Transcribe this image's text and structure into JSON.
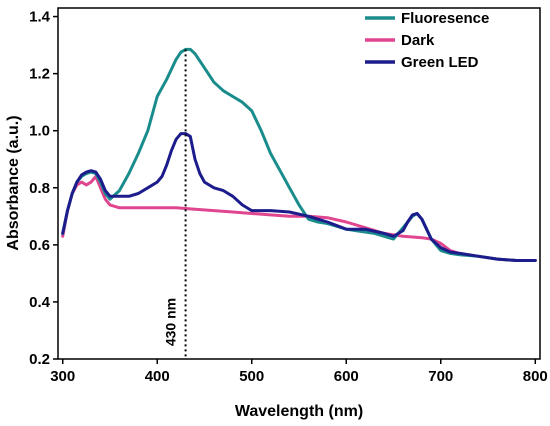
{
  "chart_data": {
    "type": "line",
    "title": "",
    "xlabel": "Wavelength (nm)",
    "ylabel": "Absorbance (a.u.)",
    "xlim": [
      295,
      805
    ],
    "ylim": [
      0.2,
      1.43
    ],
    "xticks": [
      300,
      400,
      500,
      600,
      700,
      800
    ],
    "yticks": [
      0.2,
      0.4,
      0.6,
      0.8,
      1.0,
      1.2,
      1.4
    ],
    "ytick_labels": [
      "0.2",
      "0.4",
      "0.6",
      "0.8",
      "1.0",
      "1.2",
      "1.4"
    ],
    "grid": false,
    "legend_position": "top-right",
    "series": [
      {
        "name": "Fluoresence",
        "color": "#1a8c8c",
        "x": [
          300,
          305,
          310,
          315,
          320,
          325,
          330,
          335,
          340,
          345,
          350,
          360,
          370,
          380,
          390,
          395,
          400,
          410,
          420,
          425,
          430,
          435,
          440,
          450,
          460,
          470,
          480,
          490,
          500,
          510,
          520,
          530,
          540,
          550,
          560,
          570,
          580,
          590,
          600,
          610,
          620,
          630,
          640,
          650,
          660,
          665,
          670,
          675,
          680,
          690,
          700,
          710,
          720,
          740,
          760,
          780,
          800
        ],
        "y": [
          0.64,
          0.72,
          0.78,
          0.82,
          0.84,
          0.85,
          0.855,
          0.85,
          0.82,
          0.78,
          0.76,
          0.79,
          0.85,
          0.92,
          1.0,
          1.06,
          1.12,
          1.18,
          1.25,
          1.275,
          1.285,
          1.285,
          1.27,
          1.22,
          1.17,
          1.14,
          1.12,
          1.1,
          1.07,
          1.0,
          0.92,
          0.86,
          0.8,
          0.74,
          0.69,
          0.68,
          0.675,
          0.665,
          0.655,
          0.65,
          0.645,
          0.64,
          0.63,
          0.62,
          0.66,
          0.68,
          0.7,
          0.71,
          0.69,
          0.62,
          0.58,
          0.57,
          0.565,
          0.56,
          0.55,
          0.545,
          0.545
        ]
      },
      {
        "name": "Dark",
        "color": "#e0458f",
        "x": [
          300,
          305,
          310,
          315,
          320,
          325,
          330,
          335,
          340,
          345,
          350,
          360,
          370,
          380,
          400,
          420,
          440,
          460,
          480,
          500,
          520,
          540,
          560,
          580,
          600,
          620,
          640,
          660,
          680,
          690,
          700,
          710,
          720,
          740,
          760,
          780,
          800
        ],
        "y": [
          0.63,
          0.72,
          0.78,
          0.81,
          0.82,
          0.81,
          0.82,
          0.84,
          0.8,
          0.76,
          0.74,
          0.73,
          0.73,
          0.73,
          0.73,
          0.73,
          0.725,
          0.72,
          0.715,
          0.71,
          0.705,
          0.7,
          0.7,
          0.695,
          0.68,
          0.66,
          0.64,
          0.63,
          0.625,
          0.62,
          0.605,
          0.58,
          0.57,
          0.56,
          0.55,
          0.545,
          0.545
        ]
      },
      {
        "name": "Green LED",
        "color": "#1c1c8c",
        "x": [
          300,
          305,
          310,
          315,
          320,
          325,
          330,
          335,
          340,
          345,
          350,
          360,
          370,
          380,
          390,
          400,
          405,
          410,
          415,
          420,
          425,
          430,
          435,
          440,
          445,
          450,
          460,
          470,
          480,
          490,
          500,
          520,
          540,
          560,
          580,
          600,
          620,
          640,
          650,
          660,
          665,
          670,
          675,
          680,
          690,
          700,
          710,
          720,
          740,
          760,
          780,
          800
        ],
        "y": [
          0.64,
          0.72,
          0.78,
          0.82,
          0.845,
          0.855,
          0.86,
          0.855,
          0.83,
          0.79,
          0.77,
          0.77,
          0.77,
          0.78,
          0.8,
          0.82,
          0.84,
          0.88,
          0.93,
          0.97,
          0.99,
          0.99,
          0.98,
          0.9,
          0.85,
          0.82,
          0.8,
          0.79,
          0.77,
          0.74,
          0.72,
          0.72,
          0.715,
          0.7,
          0.68,
          0.655,
          0.655,
          0.64,
          0.63,
          0.65,
          0.68,
          0.705,
          0.71,
          0.69,
          0.62,
          0.59,
          0.575,
          0.57,
          0.56,
          0.55,
          0.545,
          0.545
        ]
      }
    ],
    "annotations": [
      {
        "text": "430 nm",
        "x": 430,
        "line_style": "dotted"
      }
    ]
  }
}
